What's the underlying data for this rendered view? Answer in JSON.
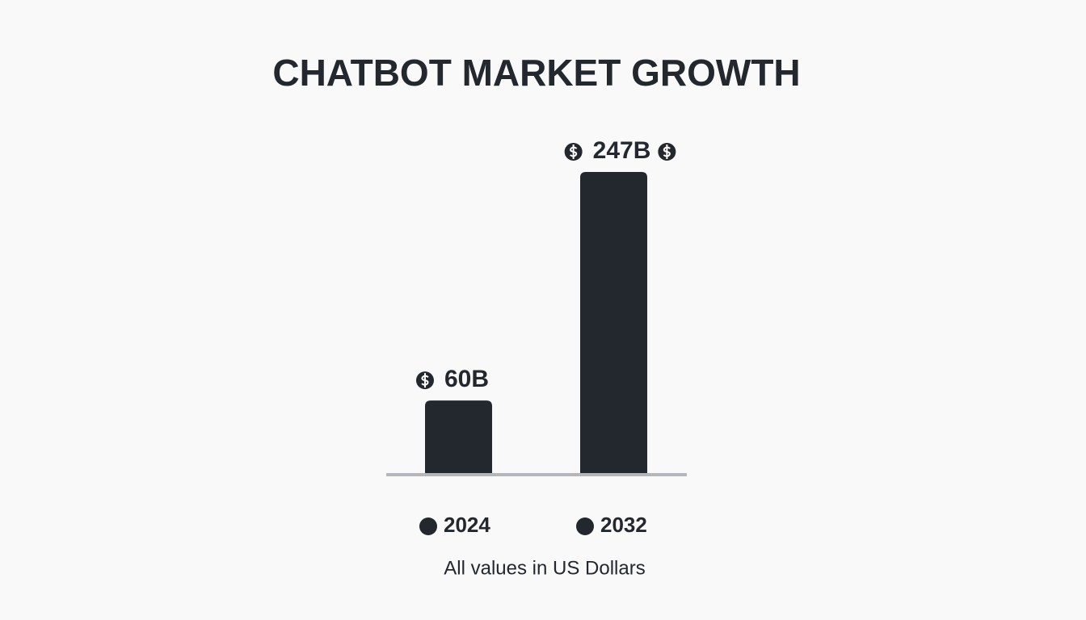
{
  "chart_data": {
    "type": "bar",
    "title": "CHATBOT MARKET GROWTH",
    "subtitle": "All values in US Dollars",
    "categories": [
      "2024",
      "2032"
    ],
    "values": [
      60,
      247
    ],
    "value_labels": [
      "60B",
      "247B"
    ],
    "color": "#23272e",
    "baseline_color": "#b3b6ba"
  }
}
